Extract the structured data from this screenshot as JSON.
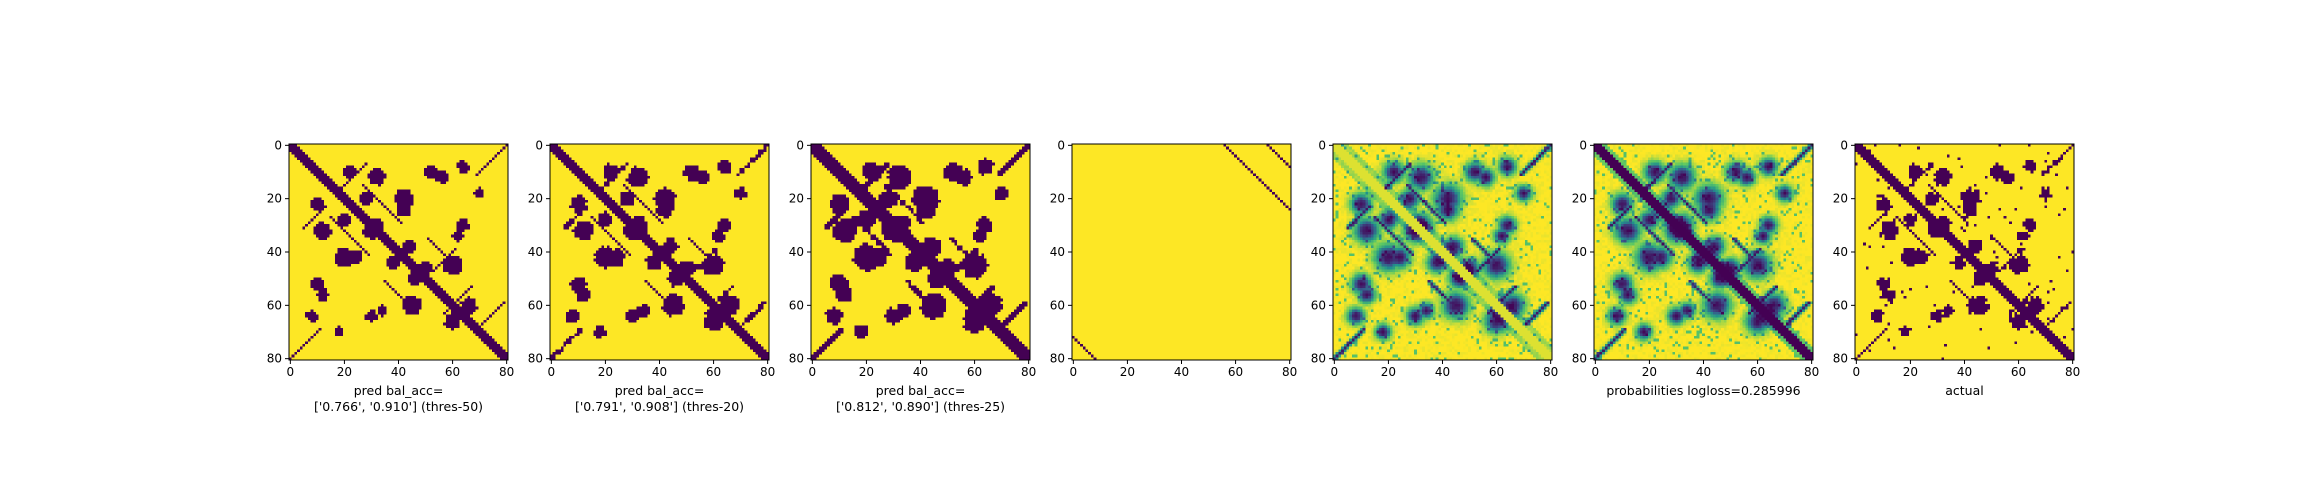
{
  "colors": {
    "low": "#440154",
    "mid": "#21918c",
    "light": "#5ec962",
    "high": "#fde725",
    "axis": "#000000"
  },
  "chart_data": [
    {
      "type": "heatmap",
      "kind": "binary",
      "variant": "pred50",
      "xlabel_lines": [
        "pred bal_acc=",
        "['0.766', '0.910'] (thres-50)"
      ],
      "xlim": [
        0,
        81
      ],
      "ylim": [
        81,
        0
      ],
      "xticks": [
        "0",
        "20",
        "40",
        "60",
        "80"
      ],
      "yticks": [
        "0",
        "20",
        "40",
        "60",
        "80"
      ],
      "grid": false
    },
    {
      "type": "heatmap",
      "kind": "binary",
      "variant": "pred20",
      "xlabel_lines": [
        "pred bal_acc=",
        "['0.791', '0.908'] (thres-20)"
      ],
      "xlim": [
        0,
        81
      ],
      "ylim": [
        81,
        0
      ],
      "xticks": [
        "0",
        "20",
        "40",
        "60",
        "80"
      ],
      "yticks": [
        "0",
        "20",
        "40",
        "60",
        "80"
      ],
      "grid": false
    },
    {
      "type": "heatmap",
      "kind": "binary",
      "variant": "pred25",
      "xlabel_lines": [
        "pred bal_acc=",
        "['0.812', '0.890'] (thres-25)"
      ],
      "xlim": [
        0,
        81
      ],
      "ylim": [
        81,
        0
      ],
      "xticks": [
        "0",
        "20",
        "40",
        "60",
        "80"
      ],
      "yticks": [
        "0",
        "20",
        "40",
        "60",
        "80"
      ],
      "grid": false
    },
    {
      "type": "heatmap",
      "kind": "binary",
      "variant": "sparse",
      "xlabel_lines": [],
      "xlim": [
        0,
        81
      ],
      "ylim": [
        81,
        0
      ],
      "xticks": [
        "0",
        "20",
        "40",
        "60",
        "80"
      ],
      "yticks": [
        "0",
        "20",
        "40",
        "60",
        "80"
      ],
      "grid": false
    },
    {
      "type": "heatmap",
      "kind": "continuous",
      "variant": "prob_offdiag",
      "xlabel_lines": [],
      "xlim": [
        0,
        81
      ],
      "ylim": [
        81,
        0
      ],
      "xticks": [
        "0",
        "20",
        "40",
        "60",
        "80"
      ],
      "yticks": [
        "0",
        "20",
        "40",
        "60",
        "80"
      ],
      "grid": false
    },
    {
      "type": "heatmap",
      "kind": "continuous",
      "variant": "prob_full",
      "xlabel_lines": [
        "probabilities logloss=0.285996"
      ],
      "xlim": [
        0,
        81
      ],
      "ylim": [
        81,
        0
      ],
      "xticks": [
        "0",
        "20",
        "40",
        "60",
        "80"
      ],
      "yticks": [
        "0",
        "20",
        "40",
        "60",
        "80"
      ],
      "grid": false
    },
    {
      "type": "heatmap",
      "kind": "binary",
      "variant": "actual",
      "xlabel_lines": [
        "actual"
      ],
      "xlim": [
        0,
        81
      ],
      "ylim": [
        81,
        0
      ],
      "xticks": [
        "0",
        "20",
        "40",
        "60",
        "80"
      ],
      "yticks": [
        "0",
        "20",
        "40",
        "60",
        "80"
      ],
      "grid": false
    }
  ]
}
